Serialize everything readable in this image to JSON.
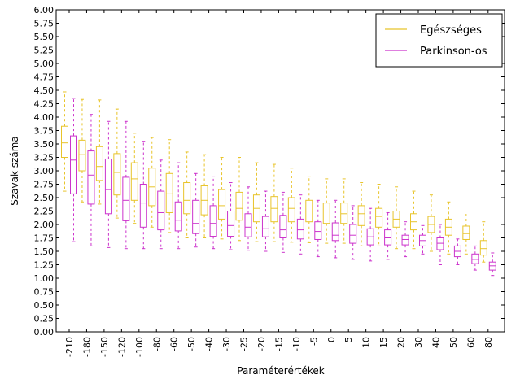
{
  "chart_data": {
    "type": "boxplot",
    "xlabel": "Paraméterértékek",
    "ylabel": "Szavak száma",
    "ylim": [
      0,
      6
    ],
    "yticks": [
      "0.00",
      "0.25",
      "0.50",
      "0.75",
      "1.00",
      "1.25",
      "1.50",
      "1.75",
      "2.00",
      "2.25",
      "2.50",
      "2.75",
      "3.00",
      "3.25",
      "3.50",
      "3.75",
      "4.00",
      "4.25",
      "4.50",
      "4.75",
      "5.00",
      "5.25",
      "5.50",
      "5.75",
      "6.00"
    ],
    "categories": [
      "-210",
      "-180",
      "-150",
      "-120",
      "-100",
      "-80",
      "-60",
      "-50",
      "-40",
      "-30",
      "-25",
      "-20",
      "-15",
      "-10",
      "-5",
      "0",
      "5",
      "10",
      "15",
      "20",
      "30",
      "40",
      "50",
      "60",
      "80"
    ],
    "legend_position": "top-right",
    "grid": false,
    "series": [
      {
        "name": "Egészséges",
        "color": "#e8c42a",
        "boxes": [
          {
            "whislo": 2.62,
            "q1": 3.25,
            "med": 3.52,
            "q3": 3.83,
            "whishi": 4.47
          },
          {
            "whislo": 2.42,
            "q1": 3.0,
            "med": 3.3,
            "q3": 3.57,
            "whishi": 4.33
          },
          {
            "whislo": 2.38,
            "q1": 2.82,
            "med": 3.08,
            "q3": 3.45,
            "whishi": 4.32
          },
          {
            "whislo": 2.12,
            "q1": 2.55,
            "med": 2.97,
            "q3": 3.32,
            "whishi": 4.15
          },
          {
            "whislo": 2.02,
            "q1": 2.45,
            "med": 2.85,
            "q3": 3.15,
            "whishi": 3.7
          },
          {
            "whislo": 1.95,
            "q1": 2.35,
            "med": 2.7,
            "q3": 3.05,
            "whishi": 3.62
          },
          {
            "whislo": 1.85,
            "q1": 2.22,
            "med": 2.57,
            "q3": 2.95,
            "whishi": 3.58
          },
          {
            "whislo": 1.75,
            "q1": 2.2,
            "med": 2.45,
            "q3": 2.78,
            "whishi": 3.35
          },
          {
            "whislo": 1.75,
            "q1": 2.18,
            "med": 2.45,
            "q3": 2.72,
            "whishi": 3.3
          },
          {
            "whislo": 1.73,
            "q1": 2.1,
            "med": 2.35,
            "q3": 2.65,
            "whishi": 3.25
          },
          {
            "whislo": 1.7,
            "q1": 2.08,
            "med": 2.3,
            "q3": 2.6,
            "whishi": 3.25
          },
          {
            "whislo": 1.68,
            "q1": 2.05,
            "med": 2.3,
            "q3": 2.55,
            "whishi": 3.15
          },
          {
            "whislo": 1.68,
            "q1": 2.05,
            "med": 2.3,
            "q3": 2.52,
            "whishi": 3.12
          },
          {
            "whislo": 1.67,
            "q1": 2.05,
            "med": 2.3,
            "q3": 2.5,
            "whishi": 3.05
          },
          {
            "whislo": 1.66,
            "q1": 2.05,
            "med": 2.25,
            "q3": 2.45,
            "whishi": 2.9
          },
          {
            "whislo": 1.65,
            "q1": 2.02,
            "med": 2.25,
            "q3": 2.4,
            "whishi": 2.85
          },
          {
            "whislo": 1.65,
            "q1": 2.02,
            "med": 2.2,
            "q3": 2.4,
            "whishi": 2.85
          },
          {
            "whislo": 1.6,
            "q1": 1.98,
            "med": 2.2,
            "q3": 2.35,
            "whishi": 2.78
          },
          {
            "whislo": 1.6,
            "q1": 1.95,
            "med": 2.15,
            "q3": 2.3,
            "whishi": 2.75
          },
          {
            "whislo": 1.55,
            "q1": 1.95,
            "med": 2.1,
            "q3": 2.25,
            "whishi": 2.7
          },
          {
            "whislo": 1.55,
            "q1": 1.9,
            "med": 2.05,
            "q3": 2.2,
            "whishi": 2.62
          },
          {
            "whislo": 1.5,
            "q1": 1.85,
            "med": 2.0,
            "q3": 2.15,
            "whishi": 2.55
          },
          {
            "whislo": 1.45,
            "q1": 1.8,
            "med": 1.95,
            "q3": 2.1,
            "whishi": 2.42
          },
          {
            "whislo": 1.45,
            "q1": 1.72,
            "med": 1.83,
            "q3": 1.97,
            "whishi": 2.25
          },
          {
            "whislo": 1.3,
            "q1": 1.43,
            "med": 1.55,
            "q3": 1.7,
            "whishi": 2.05
          }
        ]
      },
      {
        "name": "Parkinson-os",
        "color": "#cc33cc",
        "boxes": [
          {
            "whislo": 1.68,
            "q1": 2.57,
            "med": 3.2,
            "q3": 3.65,
            "whishi": 4.35
          },
          {
            "whislo": 1.6,
            "q1": 2.38,
            "med": 2.92,
            "q3": 3.37,
            "whishi": 4.05
          },
          {
            "whislo": 1.57,
            "q1": 2.2,
            "med": 2.65,
            "q3": 3.22,
            "whishi": 3.92
          },
          {
            "whislo": 1.55,
            "q1": 2.07,
            "med": 2.45,
            "q3": 2.88,
            "whishi": 3.92
          },
          {
            "whislo": 1.55,
            "q1": 1.95,
            "med": 2.4,
            "q3": 2.75,
            "whishi": 3.55
          },
          {
            "whislo": 1.55,
            "q1": 1.9,
            "med": 2.22,
            "q3": 2.62,
            "whishi": 3.2
          },
          {
            "whislo": 1.55,
            "q1": 1.88,
            "med": 2.08,
            "q3": 2.42,
            "whishi": 3.15
          },
          {
            "whislo": 1.58,
            "q1": 1.83,
            "med": 2.02,
            "q3": 2.45,
            "whishi": 2.95
          },
          {
            "whislo": 1.55,
            "q1": 1.78,
            "med": 2.02,
            "q3": 2.35,
            "whishi": 2.9
          },
          {
            "whislo": 1.53,
            "q1": 1.78,
            "med": 1.98,
            "q3": 2.25,
            "whishi": 2.78
          },
          {
            "whislo": 1.52,
            "q1": 1.77,
            "med": 1.95,
            "q3": 2.2,
            "whishi": 2.7
          },
          {
            "whislo": 1.5,
            "q1": 1.77,
            "med": 1.92,
            "q3": 2.15,
            "whishi": 2.62
          },
          {
            "whislo": 1.48,
            "q1": 1.75,
            "med": 1.9,
            "q3": 2.17,
            "whishi": 2.6
          },
          {
            "whislo": 1.45,
            "q1": 1.73,
            "med": 1.9,
            "q3": 2.1,
            "whishi": 2.55
          },
          {
            "whislo": 1.4,
            "q1": 1.72,
            "med": 1.87,
            "q3": 2.05,
            "whishi": 2.45
          },
          {
            "whislo": 1.38,
            "q1": 1.7,
            "med": 1.8,
            "q3": 2.03,
            "whishi": 2.45
          },
          {
            "whislo": 1.35,
            "q1": 1.65,
            "med": 1.8,
            "q3": 2.0,
            "whishi": 2.35
          },
          {
            "whislo": 1.32,
            "q1": 1.62,
            "med": 1.77,
            "q3": 1.92,
            "whishi": 2.3
          },
          {
            "whislo": 1.35,
            "q1": 1.62,
            "med": 1.75,
            "q3": 1.9,
            "whishi": 2.22
          },
          {
            "whislo": 1.4,
            "q1": 1.62,
            "med": 1.72,
            "q3": 1.8,
            "whishi": 2.05
          },
          {
            "whislo": 1.45,
            "q1": 1.6,
            "med": 1.7,
            "q3": 1.8,
            "whishi": 1.98
          },
          {
            "whislo": 1.25,
            "q1": 1.53,
            "med": 1.65,
            "q3": 1.75,
            "whishi": 2.0
          },
          {
            "whislo": 1.25,
            "q1": 1.4,
            "med": 1.5,
            "q3": 1.6,
            "whishi": 1.73
          },
          {
            "whislo": 1.15,
            "q1": 1.27,
            "med": 1.35,
            "q3": 1.45,
            "whishi": 1.6
          },
          {
            "whislo": 1.05,
            "q1": 1.15,
            "med": 1.23,
            "q3": 1.3,
            "whishi": 1.47
          }
        ]
      }
    ]
  }
}
